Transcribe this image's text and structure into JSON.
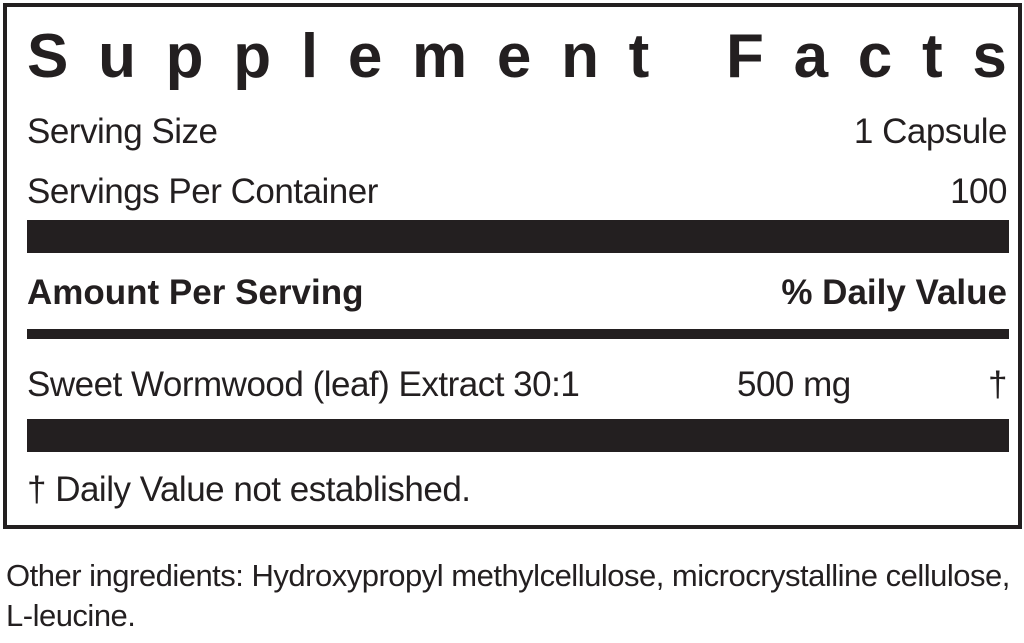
{
  "title": "Supplement Facts",
  "serving_size": {
    "label": "Serving Size",
    "value": "1 Capsule"
  },
  "servings_per_container": {
    "label": "Servings Per Container",
    "value": "100"
  },
  "header": {
    "amount": "Amount Per Serving",
    "daily_value": "% Daily Value"
  },
  "ingredients": [
    {
      "name": "Sweet Wormwood (leaf) Extract 30:1",
      "amount": "500 mg",
      "dv": "†"
    }
  ],
  "footnote": "† Daily Value not established.",
  "other_ingredients": "Other ingredients: Hydroxypropyl methylcellulose, microcrystalline cellulose, L-leucine."
}
